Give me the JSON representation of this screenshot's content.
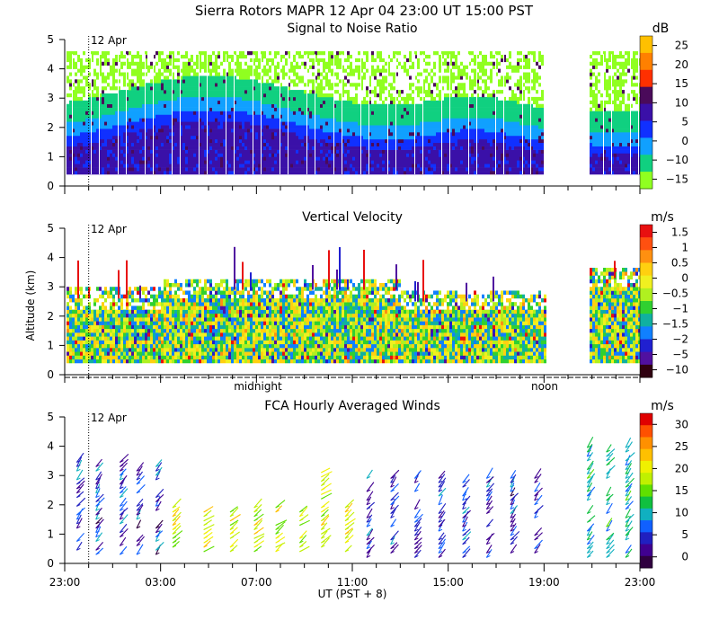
{
  "figure": {
    "title_line": "Sierra Rotors   MAPR 12 Apr 04   23:00 UT   15:00   PST",
    "date_marker": "12 Apr",
    "y_axis_label": "Altitude (km)",
    "x_axis_label": "UT  (PST + 8)",
    "x_ticks": [
      "23:00",
      "03:00",
      "07:00",
      "11:00",
      "15:00",
      "19:00",
      "23:00"
    ],
    "local_time_labels": [
      "midnight",
      "noon"
    ]
  },
  "chart_data": [
    {
      "type": "heatmap",
      "title": "Signal to Noise Ratio",
      "xlabel": "",
      "ylabel": "",
      "y_ticks": [
        0,
        1,
        2,
        3,
        4,
        5
      ],
      "ylim": [
        0,
        5
      ],
      "xlim_hours": [
        0,
        24
      ],
      "data_gap_hours": [
        20.9,
        21.8
      ],
      "colorbar": {
        "unit": "dB",
        "tick_labels": [
          "25",
          "20",
          "15",
          "10",
          "5",
          "0",
          "−10",
          "−15"
        ],
        "colors": [
          "#ffc000",
          "#ff8000",
          "#ff3000",
          "#4a0a5a",
          "#3a10a8",
          "#1030ff",
          "#10a0ff",
          "#10d080",
          "#90ff20"
        ]
      }
    },
    {
      "type": "heatmap",
      "title": "Vertical Velocity",
      "xlabel": "",
      "ylabel": "Altitude (km)",
      "y_ticks": [
        0,
        1,
        2,
        3,
        4,
        5
      ],
      "ylim": [
        0,
        5
      ],
      "xlim_hours": [
        0,
        24
      ],
      "data_gap_hours": [
        20.9,
        21.8
      ],
      "colorbar": {
        "unit": "m/s",
        "tick_labels": [
          "1.5",
          "1",
          "0.5",
          "0",
          "−0.5",
          "−1",
          "−1.5",
          "−2",
          "−5",
          "−10"
        ],
        "colors": [
          "#e81010",
          "#ff5010",
          "#ff9010",
          "#ffd010",
          "#f0f020",
          "#b0f020",
          "#30d030",
          "#10b0a0",
          "#1080ff",
          "#2020d0",
          "#5010a0",
          "#300010"
        ]
      }
    },
    {
      "type": "scatter",
      "title": "FCA Hourly Averaged Winds",
      "xlabel": "UT  (PST + 8)",
      "ylabel": "",
      "y_ticks": [
        0,
        1,
        2,
        3,
        4,
        5
      ],
      "ylim": [
        0,
        5
      ],
      "xlim_hours": [
        0,
        24
      ],
      "colorbar": {
        "unit": "m/s",
        "tick_labels": [
          "30",
          "25",
          "20",
          "15",
          "10",
          "5",
          "0"
        ],
        "colors": [
          "#e00000",
          "#ff5000",
          "#ff9000",
          "#ffc000",
          "#f0f000",
          "#c0f000",
          "#60e000",
          "#10c040",
          "#10b0c0",
          "#1060ff",
          "#2020c0",
          "#400090",
          "#300040"
        ]
      }
    }
  ]
}
